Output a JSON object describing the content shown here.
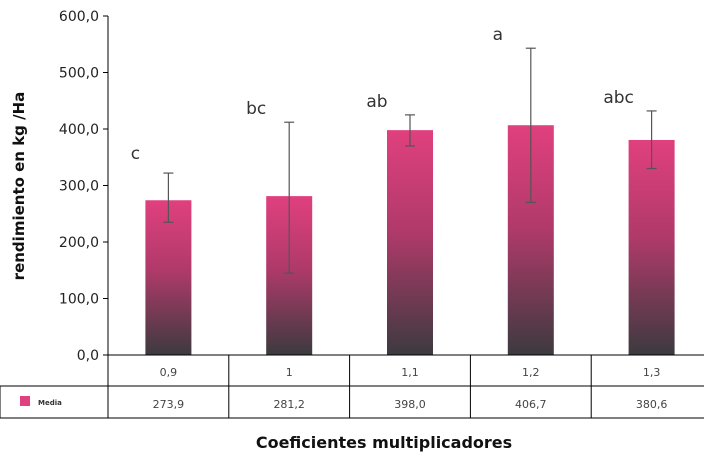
{
  "chart_data": {
    "type": "bar",
    "title": "",
    "xlabel": "Coeficientes multiplicadores",
    "ylabel": "rendimiento en kg /Ha",
    "ylim": [
      0,
      600
    ],
    "y_ticks": [
      "0,0",
      "100,0",
      "200,0",
      "300,0",
      "400,0",
      "500,0",
      "600,0"
    ],
    "categories": [
      "0,9",
      "1",
      "1,1",
      "1,2",
      "1,3"
    ],
    "series": [
      {
        "name": "Media",
        "values": [
          273.9,
          281.2,
          398.0,
          406.7,
          380.6
        ],
        "value_labels": [
          "273,9",
          "281,2",
          "398,0",
          "406,7",
          "380,6"
        ],
        "error_low": [
          235,
          145,
          370,
          270,
          330
        ],
        "error_high": [
          322,
          412,
          425,
          543,
          432
        ]
      }
    ],
    "significance_letters": [
      "c",
      "bc",
      "ab",
      "a",
      "abc"
    ],
    "bar_color_top": "#e0407e",
    "bar_color_bottom": "#3c3a3f",
    "grid": false,
    "legend": "data-table"
  }
}
